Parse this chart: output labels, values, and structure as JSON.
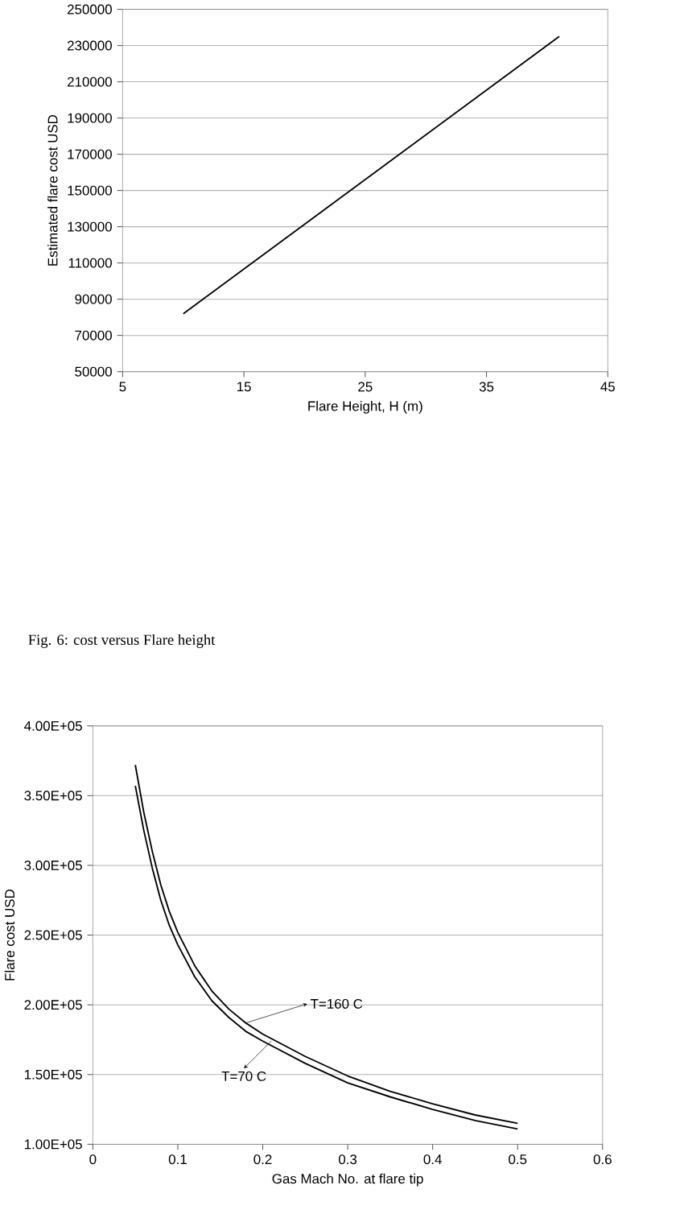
{
  "chart_data": [
    {
      "type": "line",
      "xlabel": "Flare Height, H (m)",
      "ylabel": "Estimated flare cost USD",
      "x": [
        10,
        41
      ],
      "series": [
        {
          "color": "#000000",
          "values": [
            82000,
            235000
          ]
        }
      ],
      "xlim": [
        5,
        45
      ],
      "xticks": [
        5,
        15,
        25,
        35,
        45
      ],
      "ylim": [
        50000,
        250000
      ],
      "yticks": [
        50000,
        70000,
        90000,
        110000,
        130000,
        150000,
        170000,
        190000,
        210000,
        230000,
        250000
      ],
      "grid": "y",
      "marker": "none",
      "line_style": "solid",
      "annotations": [
        "Fig. 6: cost versus Flare height"
      ]
    },
    {
      "type": "line",
      "xlabel": "Gas Mach No. at flare tip",
      "ylabel": "Flare cost USD",
      "x": [
        0.05,
        0.06,
        0.07,
        0.08,
        0.09,
        0.1,
        0.12,
        0.14,
        0.16,
        0.18,
        0.2,
        0.25,
        0.3,
        0.35,
        0.4,
        0.45,
        0.5
      ],
      "series": [
        {
          "color": "#000000",
          "values": [
            372000,
            338000,
            310000,
            286000,
            267000,
            252000,
            228000,
            210000,
            197000,
            187000,
            179000,
            163000,
            149000,
            138000,
            129000,
            121000,
            115000
          ]
        },
        {
          "color": "#000000",
          "values": [
            357000,
            325000,
            298000,
            275000,
            257000,
            243000,
            220000,
            203000,
            191000,
            181000,
            174000,
            158000,
            144000,
            134000,
            125000,
            117000,
            111000
          ]
        }
      ],
      "xlim": [
        0,
        0.6
      ],
      "xticks": [
        0,
        0.1,
        0.2,
        0.3,
        0.4,
        0.5,
        0.6
      ],
      "ylim": [
        100000,
        400000
      ],
      "yticks": [
        {
          "value": 100000,
          "label": "1.00E+05"
        },
        {
          "value": 150000,
          "label": "1.50E+05"
        },
        {
          "value": 200000,
          "label": "2.00E+05"
        },
        {
          "value": 250000,
          "label": "2.50E+05"
        },
        {
          "value": 300000,
          "label": "3.00E+05"
        },
        {
          "value": 350000,
          "label": "3.50E+05"
        },
        {
          "value": 400000,
          "label": "4.00E+05"
        }
      ],
      "grid": "y",
      "marker": "none",
      "line_style": "solid",
      "annotations": [
        {
          "text": "T=160 C",
          "x": 0.18,
          "y": 187000
        },
        {
          "text": "T=70 C",
          "x": 0.21,
          "y": 174000
        }
      ]
    }
  ]
}
